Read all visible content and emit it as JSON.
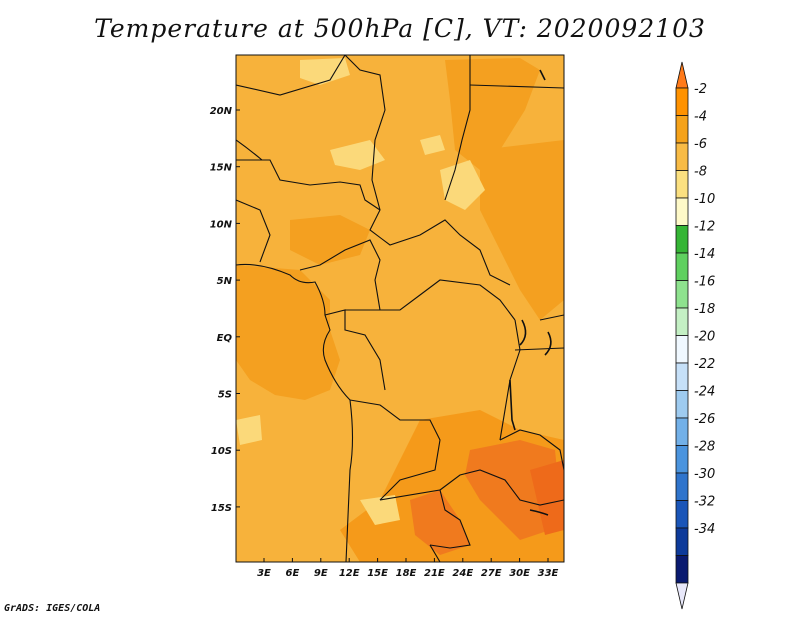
{
  "title": "Temperature at 500hPa [C], VT: 2020092103",
  "footer": "GrADS: IGES/COLA",
  "map": {
    "x_ticks": [
      "3E",
      "6E",
      "9E",
      "12E",
      "15E",
      "18E",
      "21E",
      "24E",
      "27E",
      "30E",
      "33E"
    ],
    "y_ticks": [
      "20N",
      "15N",
      "10N",
      "5N",
      "EQ",
      "5S",
      "10S",
      "15S"
    ]
  },
  "colorbar": {
    "labels": [
      "-2",
      "-4",
      "-6",
      "-8",
      "-10",
      "-12",
      "-14",
      "-16",
      "-18",
      "-20",
      "-22",
      "-24",
      "-26",
      "-28",
      "-30",
      "-32",
      "-34"
    ],
    "colors": [
      "#ff7a1a",
      "#ff9200",
      "#f5a21a",
      "#f8bb45",
      "#fbe080",
      "#fef9c8",
      "#35b535",
      "#5fd05f",
      "#8ee28e",
      "#c4f0c4",
      "#f0f8ff",
      "#c6e0f8",
      "#9ecbf0",
      "#72b0e8",
      "#4b94de",
      "#2f74cc",
      "#1a55b8",
      "#0d3a9a",
      "#0a1a70",
      "#e8e8fa"
    ]
  }
}
